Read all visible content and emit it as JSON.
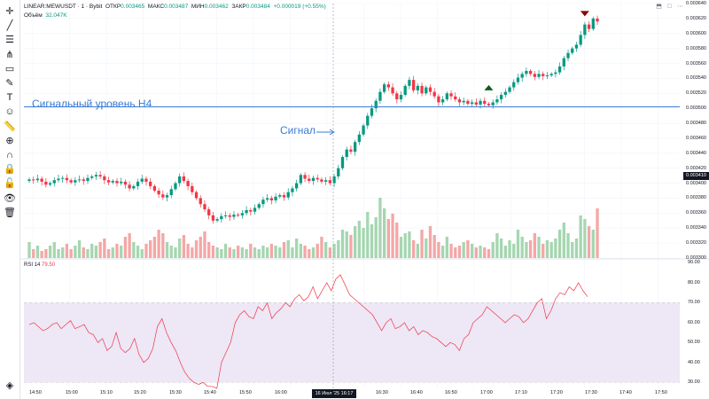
{
  "header": {
    "symbol": "LINEAR:MEWUSDT · 1 · Bybit",
    "open_label": "ОТКР",
    "open": "0.003465",
    "high_label": "МАКС",
    "high": "0.003487",
    "low_label": "МИН",
    "low": "0.003462",
    "close_label": "ЗАКР",
    "close": "0.003484",
    "change": "+0.000019 (+0.55%)",
    "volume_label": "Объём",
    "volume": "32.047K"
  },
  "price_axis": [
    "0.003640",
    "0.003620",
    "0.003600",
    "0.003580",
    "0.003560",
    "0.003540",
    "0.003520",
    "0.003500",
    "0.003480",
    "0.003460",
    "0.003440",
    "0.003420",
    "0.003400",
    "0.003380",
    "0.003360",
    "0.003340",
    "0.003320",
    "0.003300"
  ],
  "current_price": "0.003410",
  "time_axis": [
    "14:50",
    "15:00",
    "15:10",
    "15:20",
    "15:30",
    "15:40",
    "15:50",
    "16:00",
    "16:30",
    "16:40",
    "16:50",
    "17:00",
    "17:10",
    "17:20",
    "17:30",
    "17:40",
    "17:50"
  ],
  "current_time": "16 Июл '25  16:17",
  "annotations": {
    "level": "Сигнальный уровень H4",
    "signal": "Сигнал"
  },
  "rsi": {
    "label": "RSI 14",
    "value": "79.50",
    "axis": [
      "90.00",
      "80.00",
      "70.00",
      "60.00",
      "50.00",
      "40.00",
      "30.00"
    ]
  },
  "colors": {
    "up": "#089981",
    "down": "#f23645",
    "up_light": "#a5d6b0",
    "down_light": "#f5a6a6",
    "level": "#3a7bd5",
    "rsi": "#f23645",
    "rsi_band": "#ede7f6"
  },
  "toolbar_icons": [
    "crosshair-icon",
    "trend-line-icon",
    "horizontal-lines-icon",
    "fork-icon",
    "rectangle-icon",
    "brush-icon",
    "text-icon",
    "emoji-icon",
    "ruler-icon",
    "zoom-in-icon",
    "magnet-icon",
    "lock-draw-icon",
    "lock-icon",
    "eye-icon",
    "trash-icon",
    "layers-icon"
  ],
  "chart_data": {
    "type": "candlestick",
    "close": [
      0.003405,
      0.003404,
      0.003406,
      0.003402,
      0.003398,
      0.0034,
      0.003404,
      0.003406,
      0.003407,
      0.003404,
      0.003401,
      0.003404,
      0.003405,
      0.003403,
      0.003407,
      0.003409,
      0.003411,
      0.003409,
      0.003404,
      0.003401,
      0.003403,
      0.0034,
      0.003402,
      0.003398,
      0.003393,
      0.003396,
      0.003402,
      0.003406,
      0.003402,
      0.003396,
      0.00339,
      0.003385,
      0.003381,
      0.003384,
      0.003392,
      0.0034,
      0.003409,
      0.003403,
      0.003396,
      0.003388,
      0.00338,
      0.003372,
      0.003365,
      0.003357,
      0.00335,
      0.003352,
      0.003356,
      0.003357,
      0.003355,
      0.003358,
      0.003357,
      0.00336,
      0.003364,
      0.003362,
      0.003367,
      0.003372,
      0.003378,
      0.00338,
      0.003377,
      0.003382,
      0.003384,
      0.003381,
      0.003388,
      0.003393,
      0.0034,
      0.003411,
      0.003406,
      0.003403,
      0.003407,
      0.003405,
      0.003402,
      0.003404,
      0.0034,
      0.003409,
      0.00342,
      0.003435,
      0.003445,
      0.003442,
      0.003455,
      0.003465,
      0.003477,
      0.00349,
      0.0035,
      0.00351,
      0.003522,
      0.003532,
      0.003528,
      0.00352,
      0.003512,
      0.003518,
      0.00353,
      0.003538,
      0.003524,
      0.00353,
      0.00352,
      0.003528,
      0.003522,
      0.003516,
      0.003508,
      0.003512,
      0.00352,
      0.003516,
      0.003512,
      0.003508,
      0.00351,
      0.003506,
      0.003508,
      0.003505,
      0.00351,
      0.003506,
      0.003504,
      0.003508,
      0.003512,
      0.003518,
      0.003522,
      0.003528,
      0.003535,
      0.003541,
      0.003546,
      0.00355,
      0.003546,
      0.003542,
      0.003546,
      0.003543,
      0.003544,
      0.003546,
      0.003548,
      0.003556,
      0.003567,
      0.003574,
      0.00358,
      0.003585,
      0.003598,
      0.003612,
      0.003606,
      0.00362,
      0.003616
    ],
    "volume": [
      9,
      5,
      7,
      4,
      5,
      7,
      9,
      5,
      6,
      8,
      5,
      7,
      10,
      6,
      5,
      8,
      7,
      9,
      11,
      5,
      6,
      8,
      7,
      12,
      14,
      9,
      7,
      5,
      8,
      10,
      12,
      16,
      14,
      9,
      7,
      6,
      11,
      13,
      8,
      6,
      10,
      12,
      15,
      9,
      7,
      6,
      5,
      8,
      6,
      5,
      7,
      6,
      5,
      8,
      6,
      5,
      7,
      6,
      8,
      7,
      6,
      9,
      10,
      6,
      11,
      8,
      7,
      5,
      6,
      8,
      12,
      9,
      6,
      8,
      10,
      16,
      15,
      13,
      18,
      21,
      17,
      26,
      19,
      23,
      34,
      28,
      22,
      25,
      20,
      12,
      14,
      15,
      10,
      8,
      16,
      11,
      18,
      13,
      9,
      7,
      12,
      8,
      6,
      7,
      9,
      10,
      8,
      6,
      7,
      6,
      5,
      9,
      14,
      11,
      7,
      10,
      8,
      16,
      12,
      9,
      10,
      14,
      12,
      8,
      10,
      9,
      11,
      16,
      20,
      14,
      9,
      11,
      24,
      22,
      18,
      16,
      28
    ],
    "rsi": [
      59,
      60,
      58,
      56,
      57,
      59,
      60,
      57,
      59,
      61,
      57,
      58,
      59,
      55,
      54,
      50,
      52,
      46,
      48,
      55,
      47,
      45,
      47,
      52,
      44,
      40,
      42,
      47,
      58,
      62,
      55,
      50,
      46,
      40,
      35,
      32,
      30,
      29,
      30,
      28,
      28,
      27,
      40,
      45,
      50,
      60,
      64,
      66,
      63,
      62,
      68,
      66,
      70,
      62,
      65,
      67,
      70,
      68,
      72,
      74,
      71,
      73,
      78,
      72,
      76,
      80,
      76,
      82,
      84,
      79,
      74,
      72,
      70,
      68,
      66,
      64,
      60,
      56,
      60,
      62,
      57,
      58,
      60,
      56,
      58,
      54,
      56,
      55,
      53,
      52,
      50,
      48,
      50,
      49,
      46,
      52,
      54,
      60,
      62,
      64,
      68,
      66,
      64,
      62,
      60,
      62,
      64,
      63,
      60,
      62,
      66,
      70,
      72,
      62,
      66,
      72,
      75,
      74,
      78,
      76,
      80,
      76,
      73
    ],
    "level_line": 0.003502,
    "ylim": [
      0.0033,
      0.00364
    ],
    "rsi_ylim": [
      27,
      92
    ],
    "rsi_band": [
      30,
      70
    ],
    "rsi_mid": 50,
    "markers": [
      {
        "type": "up-arrow",
        "index": 110,
        "price": 0.003524
      },
      {
        "type": "down-arrow",
        "index": 133,
        "price": 0.003623
      }
    ]
  }
}
